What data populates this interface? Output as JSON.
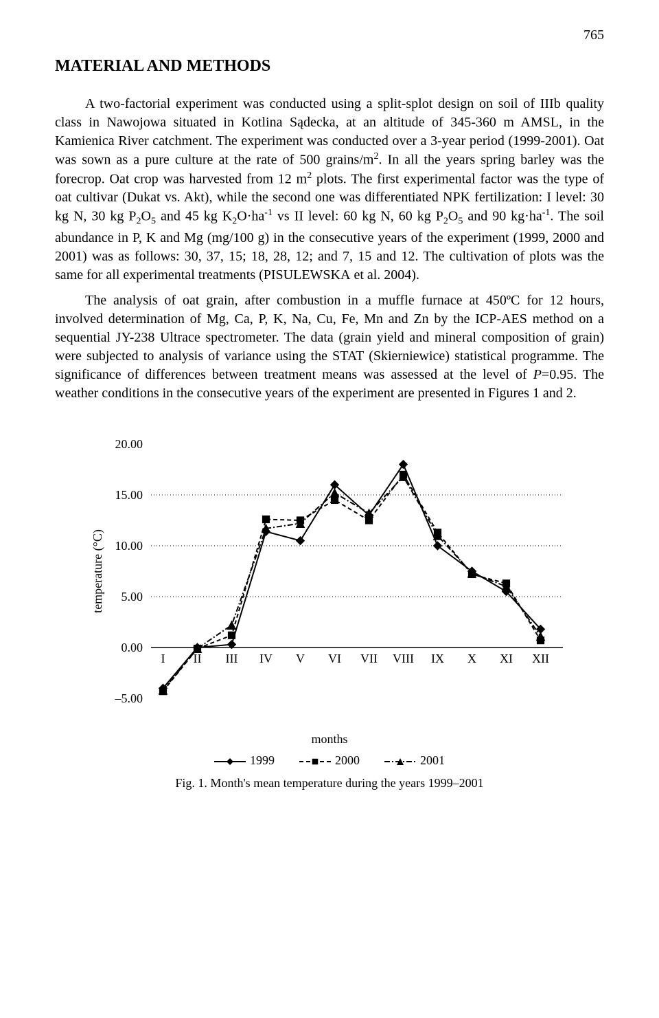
{
  "page_number": "765",
  "section_title": "MATERIAL AND METHODS",
  "paragraph1_html": "A two-factorial experiment was conducted using a split-splot design on soil of IIIb quality class in Nawojowa situated in Kotlina Sądecka, at an altitude of 345-360 m AMSL, in the Kamienica River catchment. The experiment was conducted over a 3-year period (1999-2001). Oat was sown as a pure culture at the rate of 500 grains/m<sup>2</sup>. In all the years spring barley was the forecrop. Oat crop was harvested from 12 m<sup>2</sup> plots. The first experimental factor was the type of oat cultivar (Dukat vs. Akt), while the second one was differentiated NPK fertilization: I level: 30 kg N, 30 kg P<sub>2</sub>O<sub>5</sub> and 45 kg K<sub>2</sub>O·ha<sup>-1</sup> vs II level: 60 kg N, 60 kg P<sub>2</sub>O<sub>5</sub> and 90 kg·ha<sup>-1</sup>. The soil abundance in P, K and Mg (mg/100 g) in the consecutive years of the experiment (1999, 2000 and 2001) was as follows: 30, 37, 15; 18, 28, 12; and 7, 15 and 12. The cultivation of plots was the same for all experimental treatments (P<span class=\"sc\">ISULEWSKA</span> et al. 2004).",
  "paragraph2_html": "The analysis of oat grain, after combustion in a muffle furnace at 450ºC for 12 hours, involved determination of Mg, Ca, P, K, Na, Cu, Fe, Mn and Zn by the ICP-AES method on a sequential JY-238 Ultrace spectrometer. The data (grain yield and mineral composition of grain) were subjected to analysis of variance using the STAT (Skierniewice) statistical programme. The significance of differences between treatment means was assessed at the level of <i>P</i>=0.95. The weather conditions in the consecutive years of the experiment are presented in Figures 1 and 2.",
  "chart": {
    "type": "line",
    "ylabel": "temperature (°C)",
    "xlabel": "months",
    "categories": [
      "I",
      "II",
      "III",
      "IV",
      "V",
      "VI",
      "VII",
      "VIII",
      "IX",
      "X",
      "XI",
      "XII"
    ],
    "yticks": [
      -5,
      0,
      5,
      10,
      15,
      20
    ],
    "ytick_labels": [
      "–5.00",
      "0.00",
      "5.00",
      "10.00",
      "15.00",
      "20.00"
    ],
    "ylim": [
      -5,
      20
    ],
    "series": [
      {
        "name": "1999",
        "color": "#000000",
        "dash": "none",
        "marker": "diamond",
        "values": [
          -4.0,
          0.0,
          0.3,
          11.4,
          10.5,
          16.0,
          13.0,
          18.0,
          10.0,
          7.5,
          5.5,
          1.8
        ]
      },
      {
        "name": "2000",
        "color": "#000000",
        "dash": "6,4",
        "marker": "square",
        "values": [
          -4.3,
          -0.1,
          1.2,
          12.6,
          12.5,
          14.5,
          12.5,
          17.0,
          11.3,
          7.2,
          6.3,
          0.7
        ]
      },
      {
        "name": "2001",
        "color": "#000000",
        "dash": "8,3,2,3",
        "marker": "triangle",
        "values": [
          -4.2,
          -0.1,
          2.2,
          11.7,
          12.2,
          15.2,
          13.2,
          16.8,
          11.0,
          7.3,
          6.0,
          1.1
        ]
      }
    ],
    "grid_color": "#000000",
    "grid_dash": "1,3",
    "background_color": "#ffffff",
    "line_width": 2,
    "marker_size": 6,
    "tick_fontsize": 18,
    "caption": "Fig. 1. Month's mean temperature during the years 1999–2001"
  }
}
